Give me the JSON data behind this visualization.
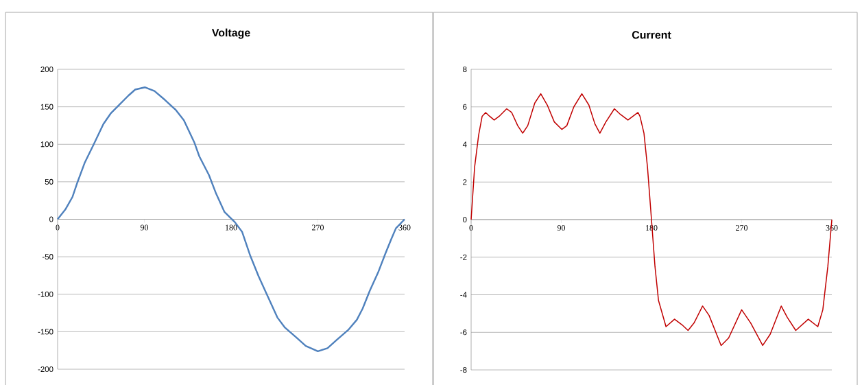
{
  "chart_data": [
    {
      "type": "line",
      "title": "Voltage",
      "color": "#4f81bd",
      "grid": "y",
      "x": [
        0,
        8,
        15.5,
        20.5,
        28,
        37.5,
        47.5,
        55,
        63.5,
        73.5,
        80.5,
        90.5,
        100.5,
        111.5,
        122.5,
        131,
        142,
        147,
        157,
        164.5,
        173,
        184,
        191.5,
        200,
        208.5,
        217,
        228,
        235.5,
        248,
        257.5,
        270,
        280,
        289.5,
        302,
        310.5,
        316.5,
        324,
        332.5,
        340,
        346,
        351,
        360
      ],
      "values": [
        0,
        13,
        30,
        49,
        75,
        100,
        127,
        141,
        152,
        165,
        173,
        176,
        171,
        159,
        146,
        132,
        102,
        84,
        59,
        34,
        10,
        -4,
        -17,
        -49,
        -76,
        -100,
        -131,
        -144,
        -158,
        -169,
        -176,
        -172,
        -161,
        -147,
        -134,
        -119,
        -95,
        -71,
        -46,
        -27,
        -12,
        0
      ],
      "xlim": [
        0,
        360
      ],
      "xticks": [
        0,
        90,
        180,
        270,
        360
      ],
      "ylim": [
        -200,
        200
      ],
      "yticks": [
        -200,
        -150,
        -100,
        -50,
        0,
        50,
        100,
        150,
        200
      ]
    },
    {
      "type": "line",
      "title": "Current",
      "color": "#c00000",
      "grid": "y",
      "x": [
        0,
        3.5,
        7.5,
        11,
        14.5,
        18.5,
        23,
        28,
        35.5,
        40.5,
        46.5,
        51.5,
        56.5,
        63.5,
        69.5,
        76,
        83,
        90.5,
        95.5,
        102.5,
        110.5,
        117.5,
        123.5,
        128.5,
        134.5,
        143,
        149,
        156.5,
        166.5,
        168.5,
        172.5,
        176,
        180,
        183.5,
        187,
        194.5,
        203,
        210.5,
        216.5,
        222.5,
        231,
        237.5,
        249.5,
        257,
        270,
        279,
        291,
        298.5,
        309.5,
        315.5,
        324,
        336.5,
        346,
        351,
        356,
        360
      ],
      "values": [
        0,
        2.8,
        4.5,
        5.5,
        5.7,
        5.5,
        5.3,
        5.5,
        5.9,
        5.7,
        5.0,
        4.6,
        5.0,
        6.2,
        6.7,
        6.1,
        5.2,
        4.8,
        5.0,
        6.0,
        6.7,
        6.1,
        5.1,
        4.6,
        5.2,
        5.9,
        5.6,
        5.3,
        5.7,
        5.5,
        4.6,
        2.8,
        0,
        -2.5,
        -4.3,
        -5.7,
        -5.3,
        -5.6,
        -5.9,
        -5.5,
        -4.6,
        -5.1,
        -6.7,
        -6.3,
        -4.8,
        -5.5,
        -6.7,
        -6.1,
        -4.6,
        -5.2,
        -5.9,
        -5.3,
        -5.7,
        -4.8,
        -2.5,
        0
      ],
      "xlim": [
        0,
        360
      ],
      "xticks": [
        0,
        90,
        180,
        270,
        360
      ],
      "ylim": [
        -8,
        8
      ],
      "yticks": [
        -8,
        -6,
        -4,
        -2,
        0,
        2,
        4,
        6,
        8
      ]
    }
  ]
}
